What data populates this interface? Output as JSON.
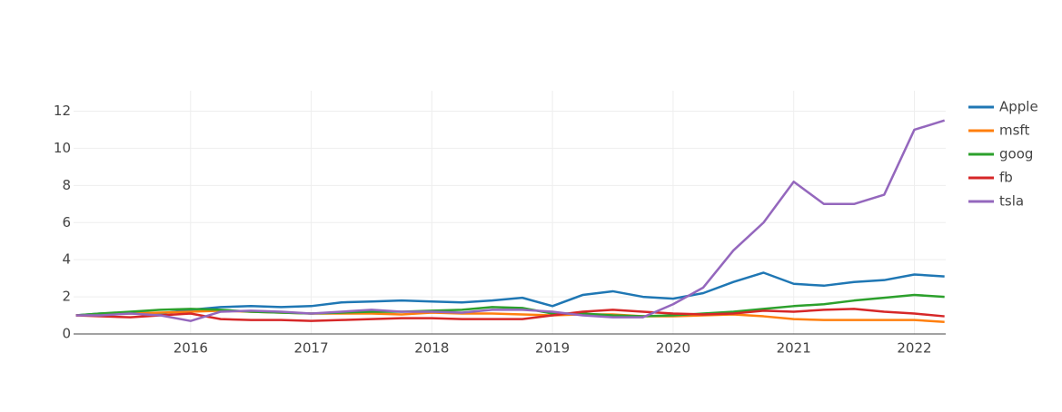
{
  "chart_data": {
    "type": "line",
    "x": [
      2015.05,
      2015.25,
      2015.5,
      2015.75,
      2016,
      2016.25,
      2016.5,
      2016.75,
      2017,
      2017.25,
      2017.5,
      2017.75,
      2018,
      2018.25,
      2018.5,
      2018.75,
      2019,
      2019.25,
      2019.5,
      2019.75,
      2020,
      2020.25,
      2020.5,
      2020.75,
      2021,
      2021.25,
      2021.5,
      2021.75,
      2022,
      2022.25
    ],
    "series": [
      {
        "name": "Apple",
        "color": "#1f77b4",
        "values": [
          1.0,
          1.1,
          1.15,
          1.1,
          1.3,
          1.45,
          1.5,
          1.45,
          1.5,
          1.7,
          1.75,
          1.8,
          1.75,
          1.7,
          1.8,
          1.95,
          1.5,
          2.1,
          2.3,
          2.0,
          1.9,
          2.2,
          2.8,
          3.3,
          2.7,
          2.6,
          2.8,
          2.9,
          3.2,
          3.1
        ]
      },
      {
        "name": "msft",
        "color": "#ff7f0e",
        "values": [
          1.0,
          1.05,
          1.1,
          1.15,
          1.2,
          1.25,
          1.2,
          1.15,
          1.1,
          1.1,
          1.1,
          1.05,
          1.15,
          1.1,
          1.1,
          1.05,
          1.0,
          1.05,
          1.05,
          0.95,
          0.95,
          1.0,
          1.05,
          0.95,
          0.8,
          0.75,
          0.75,
          0.75,
          0.75,
          0.65
        ]
      },
      {
        "name": "goog",
        "color": "#2ca02c",
        "values": [
          1.0,
          1.1,
          1.2,
          1.3,
          1.35,
          1.3,
          1.2,
          1.15,
          1.1,
          1.15,
          1.2,
          1.2,
          1.25,
          1.3,
          1.45,
          1.4,
          1.1,
          1.1,
          1.0,
          0.95,
          1.0,
          1.1,
          1.2,
          1.35,
          1.5,
          1.6,
          1.8,
          1.95,
          2.1,
          2.0
        ]
      },
      {
        "name": "fb",
        "color": "#d62728",
        "values": [
          1.0,
          0.95,
          0.9,
          1.0,
          1.1,
          0.8,
          0.75,
          0.75,
          0.7,
          0.75,
          0.8,
          0.85,
          0.85,
          0.8,
          0.8,
          0.8,
          1.0,
          1.2,
          1.3,
          1.2,
          1.1,
          1.05,
          1.1,
          1.25,
          1.2,
          1.3,
          1.35,
          1.2,
          1.1,
          0.95
        ]
      },
      {
        "name": "tsla",
        "color": "#9467bd",
        "values": [
          1.0,
          1.0,
          1.1,
          1.0,
          0.7,
          1.2,
          1.25,
          1.2,
          1.1,
          1.2,
          1.3,
          1.2,
          1.2,
          1.15,
          1.3,
          1.3,
          1.2,
          1.0,
          0.9,
          0.9,
          1.6,
          2.5,
          4.5,
          6.0,
          8.2,
          7.0,
          7.0,
          7.5,
          11.0,
          11.5
        ]
      }
    ],
    "xlim": [
      2015.03,
      2022.26
    ],
    "xticks": [
      2016,
      2017,
      2018,
      2019,
      2020,
      2021,
      2022
    ],
    "ylim": [
      0,
      13.1
    ],
    "yticks": [
      0,
      2,
      4,
      6,
      8,
      10,
      12
    ],
    "grid": true,
    "legend": "right"
  }
}
